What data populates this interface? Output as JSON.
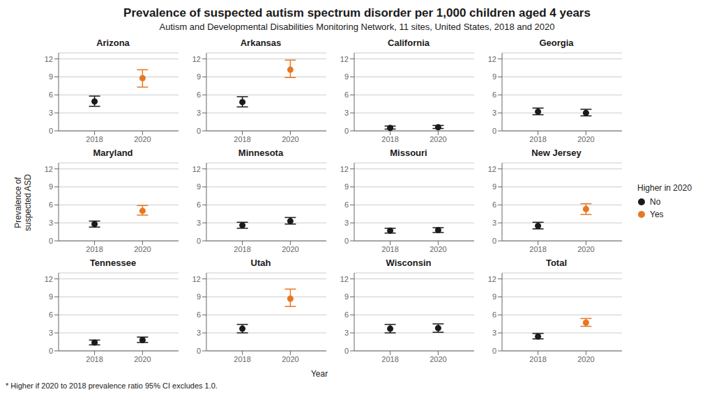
{
  "title": "Prevalence of suspected autism spectrum disorder per 1,000 children aged 4 years",
  "subtitle": "Autism and Developmental Disabilities Monitoring Network, 11 sites, United States, 2018 and 2020",
  "xlabel": "Year",
  "ylabel": "Prevalence of\nsuspected ASD",
  "annotations": [
    "* Higher if 2020 to 2018 prevalence ratio 95% CI excludes 1.0."
  ],
  "legend": "right",
  "legend_title": "Higher in 2020",
  "chart_data": [
    {
      "type": "scatter",
      "title": "Arizona",
      "x": [
        2018,
        2020
      ],
      "series": [
        {
          "name": "No",
          "color": "#1a1a1a",
          "marker": "circle",
          "values": [
            4.9,
            null
          ],
          "lo": [
            4.1,
            null
          ],
          "hi": [
            5.8,
            null
          ]
        },
        {
          "name": "Yes",
          "color": "#E87722",
          "marker": "circle",
          "values": [
            null,
            8.8
          ],
          "lo": [
            null,
            7.3
          ],
          "hi": [
            null,
            10.2
          ]
        }
      ],
      "xlim": [
        2016.5,
        2021.5
      ],
      "xticks": [
        2018,
        2020
      ],
      "ylim": [
        0,
        13
      ],
      "yticks": [
        0,
        3,
        6,
        9,
        12
      ],
      "grid": true
    },
    {
      "type": "scatter",
      "title": "Arkansas",
      "x": [
        2018,
        2020
      ],
      "series": [
        {
          "name": "No",
          "color": "#1a1a1a",
          "marker": "circle",
          "values": [
            4.8,
            null
          ],
          "lo": [
            4.0,
            null
          ],
          "hi": [
            5.7,
            null
          ]
        },
        {
          "name": "Yes",
          "color": "#E87722",
          "marker": "circle",
          "values": [
            null,
            10.2
          ],
          "lo": [
            null,
            8.9
          ],
          "hi": [
            null,
            11.8
          ]
        }
      ],
      "xlim": [
        2016.5,
        2021.5
      ],
      "xticks": [
        2018,
        2020
      ],
      "ylim": [
        0,
        13
      ],
      "yticks": [
        0,
        3,
        6,
        9,
        12
      ],
      "grid": true
    },
    {
      "type": "scatter",
      "title": "California",
      "x": [
        2018,
        2020
      ],
      "series": [
        {
          "name": "No",
          "color": "#1a1a1a",
          "marker": "circle",
          "values": [
            0.5,
            0.6
          ],
          "lo": [
            0.3,
            0.4
          ],
          "hi": [
            0.8,
            0.9
          ]
        },
        {
          "name": "Yes",
          "color": "#E87722",
          "marker": "circle",
          "values": [
            null,
            null
          ],
          "lo": [
            null,
            null
          ],
          "hi": [
            null,
            null
          ]
        }
      ],
      "xlim": [
        2016.5,
        2021.5
      ],
      "xticks": [
        2018,
        2020
      ],
      "ylim": [
        0,
        13
      ],
      "yticks": [
        0,
        3,
        6,
        9,
        12
      ],
      "grid": true
    },
    {
      "type": "scatter",
      "title": "Georgia",
      "x": [
        2018,
        2020
      ],
      "series": [
        {
          "name": "No",
          "color": "#1a1a1a",
          "marker": "circle",
          "values": [
            3.2,
            3.0
          ],
          "lo": [
            2.7,
            2.5
          ],
          "hi": [
            3.8,
            3.6
          ]
        },
        {
          "name": "Yes",
          "color": "#E87722",
          "marker": "circle",
          "values": [
            null,
            null
          ],
          "lo": [
            null,
            null
          ],
          "hi": [
            null,
            null
          ]
        }
      ],
      "xlim": [
        2016.5,
        2021.5
      ],
      "xticks": [
        2018,
        2020
      ],
      "ylim": [
        0,
        13
      ],
      "yticks": [
        0,
        3,
        6,
        9,
        12
      ],
      "grid": true
    },
    {
      "type": "scatter",
      "title": "Maryland",
      "x": [
        2018,
        2020
      ],
      "series": [
        {
          "name": "No",
          "color": "#1a1a1a",
          "marker": "circle",
          "values": [
            2.8,
            null
          ],
          "lo": [
            2.3,
            null
          ],
          "hi": [
            3.3,
            null
          ]
        },
        {
          "name": "Yes",
          "color": "#E87722",
          "marker": "circle",
          "values": [
            null,
            5.0
          ],
          "lo": [
            null,
            4.3
          ],
          "hi": [
            null,
            5.9
          ]
        }
      ],
      "xlim": [
        2016.5,
        2021.5
      ],
      "xticks": [
        2018,
        2020
      ],
      "ylim": [
        0,
        13
      ],
      "yticks": [
        0,
        3,
        6,
        9,
        12
      ],
      "grid": true
    },
    {
      "type": "scatter",
      "title": "Minnesota",
      "x": [
        2018,
        2020
      ],
      "series": [
        {
          "name": "No",
          "color": "#1a1a1a",
          "marker": "circle",
          "values": [
            2.6,
            3.3
          ],
          "lo": [
            2.1,
            2.8
          ],
          "hi": [
            3.1,
            3.9
          ]
        },
        {
          "name": "Yes",
          "color": "#E87722",
          "marker": "circle",
          "values": [
            null,
            null
          ],
          "lo": [
            null,
            null
          ],
          "hi": [
            null,
            null
          ]
        }
      ],
      "xlim": [
        2016.5,
        2021.5
      ],
      "xticks": [
        2018,
        2020
      ],
      "ylim": [
        0,
        13
      ],
      "yticks": [
        0,
        3,
        6,
        9,
        12
      ],
      "grid": true
    },
    {
      "type": "scatter",
      "title": "Missouri",
      "x": [
        2018,
        2020
      ],
      "series": [
        {
          "name": "No",
          "color": "#1a1a1a",
          "marker": "circle",
          "values": [
            1.7,
            1.8
          ],
          "lo": [
            1.3,
            1.4
          ],
          "hi": [
            2.1,
            2.2
          ]
        },
        {
          "name": "Yes",
          "color": "#E87722",
          "marker": "circle",
          "values": [
            null,
            null
          ],
          "lo": [
            null,
            null
          ],
          "hi": [
            null,
            null
          ]
        }
      ],
      "xlim": [
        2016.5,
        2021.5
      ],
      "xticks": [
        2018,
        2020
      ],
      "ylim": [
        0,
        13
      ],
      "yticks": [
        0,
        3,
        6,
        9,
        12
      ],
      "grid": true
    },
    {
      "type": "scatter",
      "title": "New Jersey",
      "x": [
        2018,
        2020
      ],
      "series": [
        {
          "name": "No",
          "color": "#1a1a1a",
          "marker": "circle",
          "values": [
            2.5,
            null
          ],
          "lo": [
            2.0,
            null
          ],
          "hi": [
            3.1,
            null
          ]
        },
        {
          "name": "Yes",
          "color": "#E87722",
          "marker": "circle",
          "values": [
            null,
            5.3
          ],
          "lo": [
            null,
            4.4
          ],
          "hi": [
            null,
            6.2
          ]
        }
      ],
      "xlim": [
        2016.5,
        2021.5
      ],
      "xticks": [
        2018,
        2020
      ],
      "ylim": [
        0,
        13
      ],
      "yticks": [
        0,
        3,
        6,
        9,
        12
      ],
      "grid": true
    },
    {
      "type": "scatter",
      "title": "Tennessee",
      "x": [
        2018,
        2020
      ],
      "series": [
        {
          "name": "No",
          "color": "#1a1a1a",
          "marker": "circle",
          "values": [
            1.4,
            1.8
          ],
          "lo": [
            1.0,
            1.4
          ],
          "hi": [
            1.8,
            2.3
          ]
        },
        {
          "name": "Yes",
          "color": "#E87722",
          "marker": "circle",
          "values": [
            null,
            null
          ],
          "lo": [
            null,
            null
          ],
          "hi": [
            null,
            null
          ]
        }
      ],
      "xlim": [
        2016.5,
        2021.5
      ],
      "xticks": [
        2018,
        2020
      ],
      "ylim": [
        0,
        13
      ],
      "yticks": [
        0,
        3,
        6,
        9,
        12
      ],
      "grid": true
    },
    {
      "type": "scatter",
      "title": "Utah",
      "x": [
        2018,
        2020
      ],
      "series": [
        {
          "name": "No",
          "color": "#1a1a1a",
          "marker": "circle",
          "values": [
            3.7,
            null
          ],
          "lo": [
            3.0,
            null
          ],
          "hi": [
            4.4,
            null
          ]
        },
        {
          "name": "Yes",
          "color": "#E87722",
          "marker": "circle",
          "values": [
            null,
            8.7
          ],
          "lo": [
            null,
            7.4
          ],
          "hi": [
            null,
            10.3
          ]
        }
      ],
      "xlim": [
        2016.5,
        2021.5
      ],
      "xticks": [
        2018,
        2020
      ],
      "ylim": [
        0,
        13
      ],
      "yticks": [
        0,
        3,
        6,
        9,
        12
      ],
      "grid": true
    },
    {
      "type": "scatter",
      "title": "Wisconsin",
      "x": [
        2018,
        2020
      ],
      "series": [
        {
          "name": "No",
          "color": "#1a1a1a",
          "marker": "circle",
          "values": [
            3.7,
            3.8
          ],
          "lo": [
            3.0,
            3.1
          ],
          "hi": [
            4.4,
            4.5
          ]
        },
        {
          "name": "Yes",
          "color": "#E87722",
          "marker": "circle",
          "values": [
            null,
            null
          ],
          "lo": [
            null,
            null
          ],
          "hi": [
            null,
            null
          ]
        }
      ],
      "xlim": [
        2016.5,
        2021.5
      ],
      "xticks": [
        2018,
        2020
      ],
      "ylim": [
        0,
        13
      ],
      "yticks": [
        0,
        3,
        6,
        9,
        12
      ],
      "grid": true
    },
    {
      "type": "scatter",
      "title": "Total",
      "x": [
        2018,
        2020
      ],
      "series": [
        {
          "name": "No",
          "color": "#1a1a1a",
          "marker": "circle",
          "values": [
            2.4,
            null
          ],
          "lo": [
            2.0,
            null
          ],
          "hi": [
            2.9,
            null
          ]
        },
        {
          "name": "Yes",
          "color": "#E87722",
          "marker": "circle",
          "values": [
            null,
            4.7
          ],
          "lo": [
            null,
            4.1
          ],
          "hi": [
            null,
            5.4
          ]
        }
      ],
      "xlim": [
        2016.5,
        2021.5
      ],
      "xticks": [
        2018,
        2020
      ],
      "ylim": [
        0,
        13
      ],
      "yticks": [
        0,
        3,
        6,
        9,
        12
      ],
      "grid": true
    }
  ]
}
